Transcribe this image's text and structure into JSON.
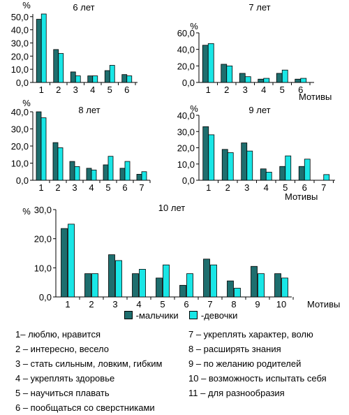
{
  "colors": {
    "boys": "#1e6e6e",
    "girls": "#19e6e6",
    "axis": "#000000"
  },
  "legend": {
    "boys": "-мальчики",
    "girls": "-девочки"
  },
  "chart_data": [
    {
      "type": "bar",
      "title": "6 лет",
      "ylabel": "%",
      "xlabel": "",
      "categories": [
        "1",
        "2",
        "3",
        "4",
        "5",
        "6"
      ],
      "yticks": [
        "0,0",
        "10,0",
        "20,0",
        "30,0",
        "40,0",
        "50,0"
      ],
      "ylim": [
        0,
        52
      ],
      "series": [
        {
          "name": "-мальчики",
          "values": [
            48,
            25,
            8,
            5,
            9,
            6
          ]
        },
        {
          "name": "-девочки",
          "values": [
            52,
            22,
            5,
            5,
            13,
            5
          ]
        }
      ]
    },
    {
      "type": "bar",
      "title": "7 лет",
      "ylabel": "%",
      "xlabel": "Мотивы",
      "categories": [
        "1",
        "2",
        "3",
        "4",
        "5",
        "6"
      ],
      "yticks": [
        "0,0",
        "20,0",
        "40,0",
        "60,0"
      ],
      "ylim": [
        0,
        60
      ],
      "series": [
        {
          "name": "-мальчики",
          "values": [
            45,
            22,
            11,
            4,
            11,
            4
          ]
        },
        {
          "name": "-девочки",
          "values": [
            47,
            20,
            7,
            5,
            15,
            5
          ]
        }
      ]
    },
    {
      "type": "bar",
      "title": "8 лет",
      "ylabel": "%",
      "xlabel": "",
      "categories": [
        "1",
        "2",
        "3",
        "4",
        "5",
        "6",
        "7"
      ],
      "yticks": [
        "0,0",
        "10,0",
        "20,0",
        "30,0",
        "40,0"
      ],
      "ylim": [
        0,
        40
      ],
      "series": [
        {
          "name": "-мальчики",
          "values": [
            40,
            22,
            11,
            7,
            9,
            7,
            3.5
          ]
        },
        {
          "name": "-девочки",
          "values": [
            36.5,
            19,
            8,
            6,
            14,
            11,
            5
          ]
        }
      ]
    },
    {
      "type": "bar",
      "title": "9 лет",
      "ylabel": "%",
      "xlabel": "Мотивы",
      "categories": [
        "1",
        "2",
        "3",
        "4",
        "5",
        "6",
        "7"
      ],
      "yticks": [
        "0,0",
        "10,0",
        "20,0",
        "30,0",
        "40,0"
      ],
      "ylim": [
        0,
        40
      ],
      "series": [
        {
          "name": "-мальчики",
          "values": [
            33,
            19,
            23,
            7,
            8.5,
            8.5,
            0
          ]
        },
        {
          "name": "-девочки",
          "values": [
            28,
            17,
            18,
            5,
            15,
            13,
            3.5
          ]
        }
      ]
    },
    {
      "type": "bar",
      "title": "10 лет",
      "ylabel": "%",
      "xlabel": "Мотивы",
      "categories": [
        "1",
        "2",
        "3",
        "4",
        "5",
        "6",
        "7",
        "8",
        "9",
        "10"
      ],
      "yticks": [
        "0,0",
        "10,0",
        "20,0",
        "30,0"
      ],
      "ylim": [
        0,
        30
      ],
      "series": [
        {
          "name": "-мальчики",
          "values": [
            23.5,
            8,
            14.5,
            8,
            6.5,
            4,
            13,
            5.5,
            10.5,
            8
          ]
        },
        {
          "name": "-девочки",
          "values": [
            25,
            8,
            12.5,
            9.5,
            11,
            8,
            11,
            3,
            8,
            6.5
          ]
        }
      ]
    }
  ],
  "notes_left": [
    "1– люблю, нравится",
    "2 – интересно, весело",
    "3 – стать сильным, ловким, гибким",
    "4 – укреплять здоровье",
    "5 – научиться плавать",
    "6 – пообщаться со сверстниками"
  ],
  "notes_right": [
    "7 – укреплять характер, волю",
    "8 – расширять знания",
    "9 – по желанию родителей",
    "10 – возможность испытать себя",
    "11 – для разнообразия"
  ]
}
